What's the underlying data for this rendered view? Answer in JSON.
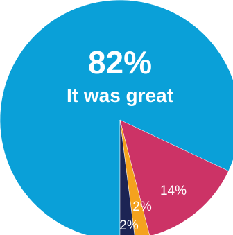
{
  "chart_data": {
    "type": "pie",
    "title": "",
    "slices": [
      {
        "label": "82%",
        "value": 82,
        "caption": "It was great",
        "color": "#0aa0d8"
      },
      {
        "label": "14%",
        "value": 14,
        "caption": "",
        "color": "#cc3366"
      },
      {
        "label": "2%",
        "value": 2,
        "caption": "",
        "color": "#f4a21e"
      },
      {
        "label": "2%",
        "value": 2,
        "caption": "",
        "color": "#1c2454"
      }
    ],
    "start_angle_deg": 180,
    "direction": "counterclockwise",
    "legend": "none"
  }
}
